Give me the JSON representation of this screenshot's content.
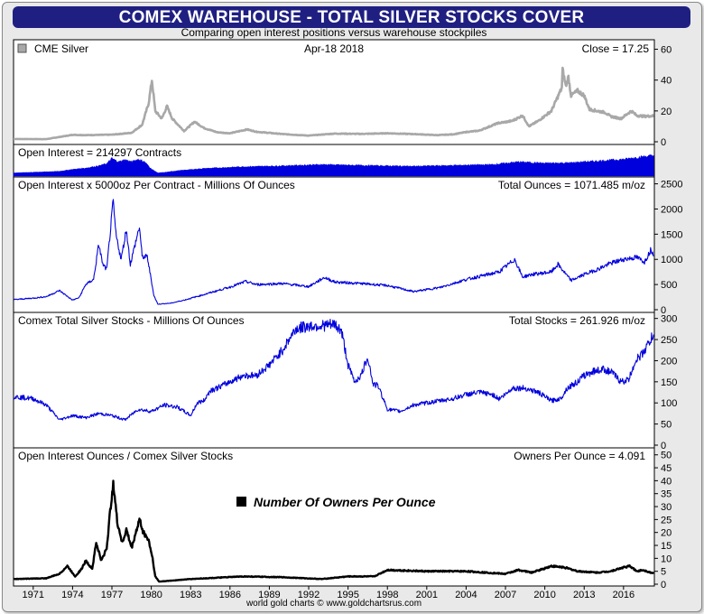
{
  "title": "COMEX WAREHOUSE - TOTAL SILVER STOCKS COVER",
  "subtitle": "Comparing open interest positions versus warehouse stockpiles",
  "credit": "world gold charts © www.goldchartsrus.com",
  "colors": {
    "header": "#1f1f82",
    "gray_series": "#a8a8a8",
    "blue_series": "#0000dd",
    "black_series": "#000000"
  },
  "chart_data": [
    {
      "type": "line",
      "name": "cme-silver",
      "label_left": "CME Silver",
      "label_center": "Apr-18  2018",
      "label_right": "Close = 17.25",
      "ylim": [
        0,
        65
      ],
      "yticks": [
        0,
        20,
        40,
        60
      ],
      "series": [
        {
          "color": "#a8a8a8",
          "points": [
            [
              1969.5,
              1.8
            ],
            [
              1972,
              1.7
            ],
            [
              1974,
              4.5
            ],
            [
              1975,
              4.3
            ],
            [
              1977,
              4.6
            ],
            [
              1978.5,
              5.8
            ],
            [
              1979.3,
              11
            ],
            [
              1979.8,
              25
            ],
            [
              1980.05,
              40
            ],
            [
              1980.3,
              20
            ],
            [
              1980.8,
              15
            ],
            [
              1981.2,
              23
            ],
            [
              1981.6,
              15
            ],
            [
              1982.5,
              7
            ],
            [
              1983.3,
              13
            ],
            [
              1984,
              9
            ],
            [
              1985,
              6.2
            ],
            [
              1986,
              5.5
            ],
            [
              1987.3,
              8
            ],
            [
              1988,
              6.5
            ],
            [
              1990,
              5
            ],
            [
              1992,
              4
            ],
            [
              1993.5,
              5
            ],
            [
              1994,
              5.3
            ],
            [
              1996,
              5.1
            ],
            [
              1998,
              5.5
            ],
            [
              2000,
              5
            ],
            [
              2001.8,
              4.3
            ],
            [
              2003,
              4.8
            ],
            [
              2004,
              6.3
            ],
            [
              2005,
              7.2
            ],
            [
              2006.4,
              12
            ],
            [
              2007.5,
              13.5
            ],
            [
              2008.3,
              17
            ],
            [
              2008.8,
              10
            ],
            [
              2009.5,
              13.5
            ],
            [
              2010.5,
              20
            ],
            [
              2011.3,
              35
            ],
            [
              2011.35,
              47
            ],
            [
              2011.6,
              36
            ],
            [
              2011.8,
              42
            ],
            [
              2012,
              30
            ],
            [
              2012.5,
              33
            ],
            [
              2013,
              30
            ],
            [
              2013.4,
              21
            ],
            [
              2014,
              20
            ],
            [
              2014.6,
              19
            ],
            [
              2015,
              16.5
            ],
            [
              2015.8,
              15
            ],
            [
              2016.6,
              20
            ],
            [
              2017,
              17
            ],
            [
              2017.6,
              16.5
            ],
            [
              2018.3,
              16.8
            ]
          ]
        }
      ],
      "annotations": []
    },
    {
      "type": "area",
      "name": "open-interest-contracts",
      "label_left": "Open Interest = 214297 Contracts",
      "label_right": "",
      "ylim": [
        0,
        320000
      ],
      "yticks": [],
      "series": [
        {
          "color": "#0000dd",
          "points": [
            [
              1969.5,
              15000
            ],
            [
              1971,
              22000
            ],
            [
              1973,
              33000
            ],
            [
              1974,
              55000
            ],
            [
              1975,
              70000
            ],
            [
              1976,
              95000
            ],
            [
              1976.6,
              120000
            ],
            [
              1977,
              180000
            ],
            [
              1977.5,
              140000
            ],
            [
              1978,
              165000
            ],
            [
              1978.5,
              140000
            ],
            [
              1979,
              170000
            ],
            [
              1979.5,
              140000
            ],
            [
              1980,
              60000
            ],
            [
              1980.5,
              15000
            ],
            [
              1981,
              20000
            ],
            [
              1982,
              40000
            ],
            [
              1984,
              65000
            ],
            [
              1987,
              85000
            ],
            [
              1990,
              95000
            ],
            [
              1993,
              110000
            ],
            [
              1996,
              100000
            ],
            [
              1998,
              95000
            ],
            [
              2000,
              90000
            ],
            [
              2003,
              100000
            ],
            [
              2006,
              110000
            ],
            [
              2008,
              140000
            ],
            [
              2010,
              125000
            ],
            [
              2012,
              130000
            ],
            [
              2014,
              150000
            ],
            [
              2016,
              170000
            ],
            [
              2017,
              190000
            ],
            [
              2018.3,
              214297
            ]
          ]
        }
      ]
    },
    {
      "type": "line",
      "name": "open-interest-ounces",
      "label_left": "Open Interest x 5000oz Per Contract - Millions Of Ounces",
      "label_right": "Total Ounces = 1071.485 m/oz",
      "ylim": [
        0,
        2600
      ],
      "yticks": [
        0,
        500,
        1000,
        1500,
        2000,
        2500
      ],
      "series": [
        {
          "color": "#0000dd",
          "points": [
            [
              1969.5,
              200
            ],
            [
              1971,
              230
            ],
            [
              1972,
              260
            ],
            [
              1973,
              380
            ],
            [
              1974,
              190
            ],
            [
              1974.5,
              240
            ],
            [
              1975,
              500
            ],
            [
              1975.6,
              600
            ],
            [
              1976,
              1300
            ],
            [
              1976.3,
              900
            ],
            [
              1976.6,
              800
            ],
            [
              1977.1,
              2150
            ],
            [
              1977.3,
              1500
            ],
            [
              1977.7,
              1000
            ],
            [
              1978.1,
              1600
            ],
            [
              1978.4,
              900
            ],
            [
              1979.1,
              1650
            ],
            [
              1979.3,
              1050
            ],
            [
              1979.7,
              1050
            ],
            [
              1980.2,
              280
            ],
            [
              1980.5,
              110
            ],
            [
              1981.5,
              130
            ],
            [
              1982.5,
              190
            ],
            [
              1984,
              300
            ],
            [
              1986,
              450
            ],
            [
              1987.2,
              560
            ],
            [
              1988,
              500
            ],
            [
              1990,
              520
            ],
            [
              1992,
              460
            ],
            [
              1993.2,
              640
            ],
            [
              1994,
              550
            ],
            [
              1996,
              520
            ],
            [
              1998,
              480
            ],
            [
              2000,
              360
            ],
            [
              2002,
              440
            ],
            [
              2004,
              600
            ],
            [
              2006.5,
              750
            ],
            [
              2007.7,
              1000
            ],
            [
              2008.3,
              650
            ],
            [
              2009,
              700
            ],
            [
              2010.5,
              750
            ],
            [
              2011,
              900
            ],
            [
              2012,
              580
            ],
            [
              2013,
              700
            ],
            [
              2014,
              800
            ],
            [
              2015,
              920
            ],
            [
              2016,
              1000
            ],
            [
              2017,
              1040
            ],
            [
              2017.6,
              950
            ],
            [
              2018.1,
              1200
            ],
            [
              2018.3,
              1071
            ]
          ]
        }
      ]
    },
    {
      "type": "line",
      "name": "comex-silver-stocks",
      "label_left": "Comex Total Silver Stocks - Millions Of Ounces",
      "label_right": "Total Stocks = 261.926 m/oz",
      "ylim": [
        0,
        310
      ],
      "yticks": [
        0,
        50,
        100,
        150,
        200,
        250,
        300
      ],
      "series": [
        {
          "color": "#0000dd",
          "points": [
            [
              1969.5,
              115
            ],
            [
              1971,
              110
            ],
            [
              1972,
              95
            ],
            [
              1973,
              60
            ],
            [
              1974,
              70
            ],
            [
              1975,
              65
            ],
            [
              1976,
              75
            ],
            [
              1977,
              70
            ],
            [
              1978,
              60
            ],
            [
              1979,
              85
            ],
            [
              1980,
              80
            ],
            [
              1981,
              95
            ],
            [
              1982,
              90
            ],
            [
              1983,
              70
            ],
            [
              1983.5,
              100
            ],
            [
              1984,
              105
            ],
            [
              1984.5,
              130
            ],
            [
              1985,
              135
            ],
            [
              1986,
              150
            ],
            [
              1987,
              165
            ],
            [
              1988,
              165
            ],
            [
              1989,
              190
            ],
            [
              1990,
              225
            ],
            [
              1991,
              275
            ],
            [
              1992,
              282
            ],
            [
              1993,
              283
            ],
            [
              1994,
              285
            ],
            [
              1994.5,
              270
            ],
            [
              1995,
              190
            ],
            [
              1995.5,
              150
            ],
            [
              1996,
              165
            ],
            [
              1996.5,
              210
            ],
            [
              1996.9,
              145
            ],
            [
              1997.3,
              140
            ],
            [
              1998,
              85
            ],
            [
              1999,
              80
            ],
            [
              2000,
              95
            ],
            [
              2001,
              100
            ],
            [
              2002,
              105
            ],
            [
              2003,
              110
            ],
            [
              2004,
              120
            ],
            [
              2005,
              125
            ],
            [
              2006,
              120
            ],
            [
              2006.5,
              110
            ],
            [
              2007,
              120
            ],
            [
              2007.5,
              135
            ],
            [
              2008.5,
              135
            ],
            [
              2009.5,
              125
            ],
            [
              2010.5,
              105
            ],
            [
              2011.2,
              110
            ],
            [
              2011.7,
              135
            ],
            [
              2012.5,
              150
            ],
            [
              2013,
              165
            ],
            [
              2013.7,
              175
            ],
            [
              2014.5,
              180
            ],
            [
              2015.2,
              170
            ],
            [
              2015.8,
              150
            ],
            [
              2016.4,
              155
            ],
            [
              2016.9,
              200
            ],
            [
              2017.4,
              215
            ],
            [
              2017.9,
              240
            ],
            [
              2018.3,
              262
            ]
          ]
        }
      ]
    },
    {
      "type": "line",
      "name": "owners-per-ounce",
      "label_left": "Open Interest Ounces / Comex Silver Stocks",
      "label_right": "Owners Per Ounce = 4.091",
      "ylim": [
        0,
        52
      ],
      "yticks": [
        0,
        5,
        10,
        15,
        20,
        25,
        30,
        35,
        40,
        45,
        50
      ],
      "legend": "Number Of Owners Per Ounce",
      "series": [
        {
          "color": "#000000",
          "points": [
            [
              1969.5,
              2
            ],
            [
              1972,
              2.3
            ],
            [
              1973,
              4
            ],
            [
              1973.6,
              7
            ],
            [
              1974.2,
              3
            ],
            [
              1974.7,
              6
            ],
            [
              1975,
              9
            ],
            [
              1975.5,
              6
            ],
            [
              1975.8,
              16
            ],
            [
              1976.2,
              9
            ],
            [
              1976.6,
              14
            ],
            [
              1977.1,
              40
            ],
            [
              1977.4,
              24
            ],
            [
              1977.8,
              16
            ],
            [
              1978.1,
              21
            ],
            [
              1978.5,
              14
            ],
            [
              1979.1,
              25
            ],
            [
              1979.4,
              20
            ],
            [
              1979.8,
              17
            ],
            [
              1980.1,
              10
            ],
            [
              1980.3,
              3
            ],
            [
              1980.6,
              1
            ],
            [
              1983,
              2
            ],
            [
              1987,
              3
            ],
            [
              1990,
              2.7
            ],
            [
              1993,
              2
            ],
            [
              1995,
              3
            ],
            [
              1997,
              3
            ],
            [
              1998,
              5.5
            ],
            [
              2001,
              5
            ],
            [
              2004,
              5
            ],
            [
              2007,
              4
            ],
            [
              2008,
              5.5
            ],
            [
              2009,
              4.5
            ],
            [
              2010.5,
              7
            ],
            [
              2011.5,
              6.5
            ],
            [
              2012.5,
              5
            ],
            [
              2014,
              4.5
            ],
            [
              2015,
              5
            ],
            [
              2016,
              6.5
            ],
            [
              2016.5,
              7
            ],
            [
              2017,
              5
            ],
            [
              2017.5,
              5.5
            ],
            [
              2018.3,
              4.1
            ]
          ]
        }
      ]
    }
  ],
  "x_axis": {
    "ticks": [
      "1971",
      "1974",
      "1977",
      "1980",
      "1983",
      "1986",
      "1989",
      "1992",
      "1995",
      "1998",
      "2001",
      "2004",
      "2007",
      "2010",
      "2013",
      "2016"
    ],
    "tick_years": [
      1971,
      1974,
      1977,
      1980,
      1983,
      1986,
      1989,
      1992,
      1995,
      1998,
      2001,
      2004,
      2007,
      2010,
      2013,
      2016
    ],
    "range": [
      1969.5,
      2018.35
    ]
  }
}
